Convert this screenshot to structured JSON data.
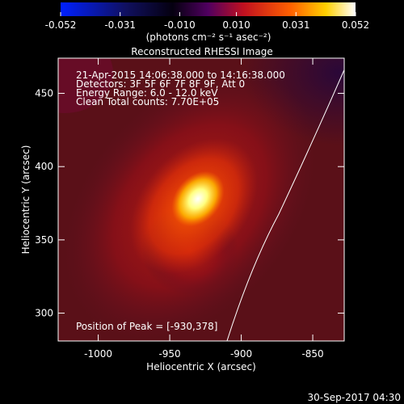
{
  "chart_data": {
    "type": "image",
    "title": "Reconstructed RHESSI Image",
    "xlabel": "Heliocentric X (arcsec)",
    "ylabel": "Heliocentric Y (arcsec)",
    "xlim": [
      -1028,
      -828
    ],
    "ylim": [
      281,
      474
    ],
    "xticks": [
      -1000,
      -950,
      -900,
      -850
    ],
    "yticks": [
      300,
      350,
      400,
      450
    ],
    "colorbar": {
      "label": "(photons cm⁻² s⁻¹ asec⁻²)",
      "lim": [
        -0.052,
        0.052
      ],
      "ticks": [
        -0.052,
        -0.031,
        {
          "value": -0.01,
          "label": "-0.010"
        },
        {
          "value": 0.01,
          "label": "0.010"
        },
        0.031,
        0.052
      ]
    },
    "info": [
      "21-Apr-2015 14:06:38.000 to 14:16:38.000",
      "Detectors: 3F 5F 6F 7F 8F 9F, Att 0",
      "Energy Range: 6.0 - 12.0 keV",
      "Clean     Total counts: 7.70E+05"
    ],
    "peak_label": "Position of Peak = [-930,378]",
    "footer": "30-Sep-2017 04:30"
  }
}
